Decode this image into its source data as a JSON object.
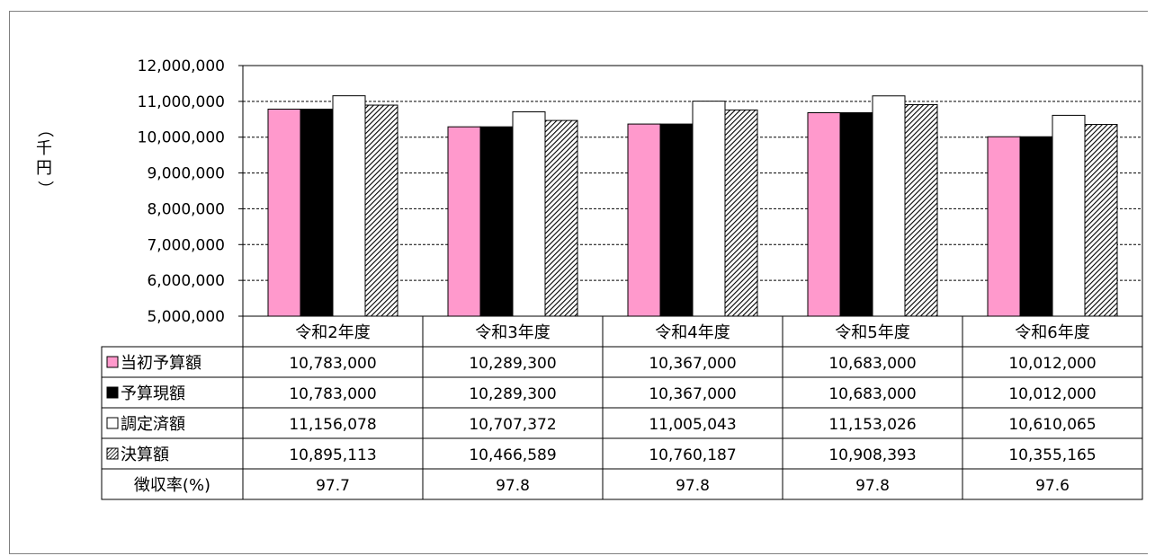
{
  "chart_data": {
    "type": "bar",
    "ylabel": "（千円）",
    "ylim": [
      5000000,
      12000000
    ],
    "yticks": [
      "12,000,000",
      "11,000,000",
      "10,000,000",
      "9,000,000",
      "8,000,000",
      "7,000,000",
      "6,000,000",
      "5,000,000"
    ],
    "ytick_values": [
      12000000,
      11000000,
      10000000,
      9000000,
      8000000,
      7000000,
      6000000,
      5000000
    ],
    "grid": true,
    "categories": [
      "令和2年度",
      "令和3年度",
      "令和4年度",
      "令和5年度",
      "令和6年度"
    ],
    "series": [
      {
        "name": "当初予算額",
        "values": [
          10783000,
          10289300,
          10367000,
          10683000,
          10012000
        ],
        "labels": [
          "10,783,000",
          "10,289,300",
          "10,367,000",
          "10,683,000",
          "10,012,000"
        ],
        "color": "#ff99cc",
        "pattern": "solid",
        "marker": "■"
      },
      {
        "name": "予算現額",
        "values": [
          10783000,
          10289300,
          10367000,
          10683000,
          10012000
        ],
        "labels": [
          "10,783,000",
          "10,289,300",
          "10,367,000",
          "10,683,000",
          "10,012,000"
        ],
        "color": "#000000",
        "pattern": "solid",
        "marker": "■"
      },
      {
        "name": "調定済額",
        "values": [
          11156078,
          10707372,
          11005043,
          11153026,
          10610065
        ],
        "labels": [
          "11,156,078",
          "10,707,372",
          "11,005,043",
          "11,153,026",
          "10,610,065"
        ],
        "color": "#ffffff",
        "pattern": "solid",
        "marker": "□"
      },
      {
        "name": "決算額",
        "values": [
          10895113,
          10466589,
          10760187,
          10908393,
          10355165
        ],
        "labels": [
          "10,895,113",
          "10,466,589",
          "10,760,187",
          "10,908,393",
          "10,355,165"
        ],
        "color": "#000000",
        "pattern": "hatch",
        "marker": "▨"
      }
    ],
    "extra_row": {
      "name": "徴収率(%)",
      "values": [
        97.7,
        97.8,
        97.8,
        97.8,
        97.6
      ],
      "labels": [
        "97.7",
        "97.8",
        "97.8",
        "97.8",
        "97.6"
      ]
    }
  }
}
